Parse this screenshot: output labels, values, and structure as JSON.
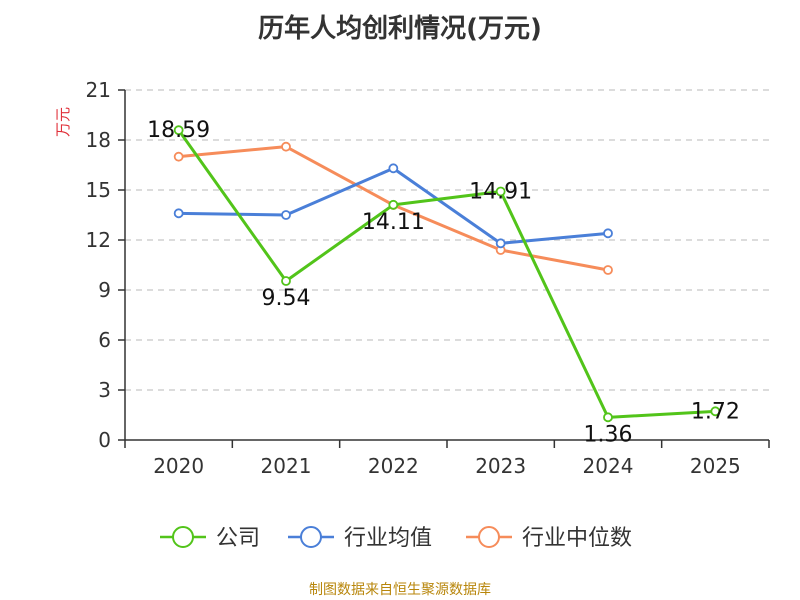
{
  "footer": "制图数据来自恒生聚源数据库",
  "chart_data": {
    "type": "line",
    "title": "历年人均创利情况(万元)",
    "ylabel": "万元",
    "xlabel": "",
    "ylim": [
      0,
      21
    ],
    "yticks": [
      0,
      3,
      6,
      9,
      12,
      15,
      18,
      21
    ],
    "categories": [
      "2020",
      "2021",
      "2022",
      "2023",
      "2024",
      "2025"
    ],
    "grid": true,
    "legend_position": "bottom",
    "series": [
      {
        "name": "公司",
        "color": "#52c41a",
        "values": [
          18.59,
          9.54,
          14.11,
          14.91,
          1.36,
          1.72
        ],
        "labels": [
          "18.59",
          "9.54",
          "14.11",
          "14.91",
          "1.36",
          "1.72"
        ]
      },
      {
        "name": "行业均值",
        "color": "#4a7fd8",
        "values": [
          13.6,
          13.5,
          16.3,
          11.8,
          12.4,
          null
        ]
      },
      {
        "name": "行业中位数",
        "color": "#f68c5a",
        "values": [
          17.0,
          17.6,
          14.1,
          11.4,
          10.2,
          null
        ]
      }
    ]
  }
}
